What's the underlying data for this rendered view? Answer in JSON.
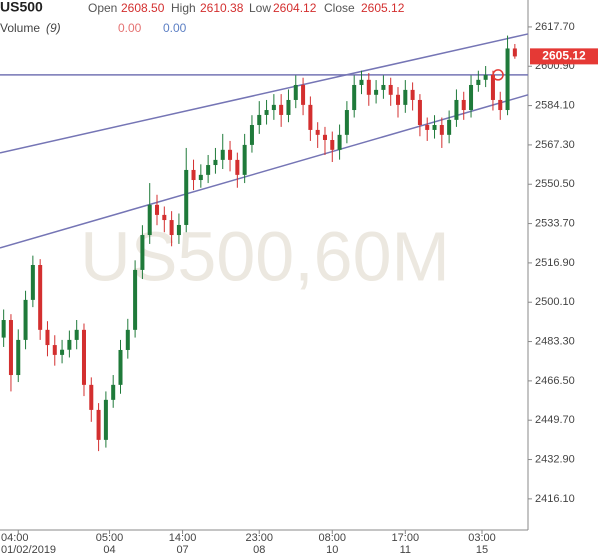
{
  "chart_data": {
    "type": "candlestick",
    "title": "US500",
    "header": {
      "open_label": "Open",
      "open": "2608.50",
      "high_label": "High",
      "high": "2610.38",
      "low_label": "Low",
      "low": "2604.12",
      "close_label": "Close",
      "close": "2605.12",
      "volume_label": "Volume",
      "volume_param": "(9)",
      "volume_value_1": "0.00",
      "volume_value_2": "0.00"
    },
    "watermark": "US500,60M",
    "up_color": "#1f7a3a",
    "down_color": "#d32f2f",
    "drawing_color": "#7575b5",
    "candles": {
      "open": [
        2485.0,
        2492.5,
        2469.0,
        2484.0,
        2501.1,
        2516.0,
        2488.3,
        2481.8,
        2477.6,
        2479.8,
        2484.0,
        2488.3,
        2464.8,
        2454.1,
        2441.3,
        2458.4,
        2464.8,
        2479.7,
        2488.3,
        2513.9,
        2528.8,
        2541.7,
        2537.4,
        2535.2,
        2528.8,
        2533.1,
        2556.6,
        2552.3,
        2554.5,
        2558.7,
        2560.9,
        2565.2,
        2560.9,
        2554.5,
        2567.3,
        2575.8,
        2580.1,
        2582.2,
        2584.4,
        2580.1,
        2586.5,
        2592.9,
        2584.4,
        2573.7,
        2571.6,
        2569.4,
        2565.2,
        2571.6,
        2582.2,
        2592.9,
        2595.1,
        2588.7,
        2590.8,
        2592.9,
        2588.7,
        2584.4,
        2590.8,
        2586.5,
        2575.8,
        2573.7,
        2575.8,
        2571.6,
        2578.0,
        2586.5,
        2582.2,
        2592.9,
        2595.1,
        2597.2,
        2586.5,
        2582.2,
        2608.5
      ],
      "high": [
        2497.0,
        2495.0,
        2488.5,
        2505.0,
        2520.0,
        2518.5,
        2492.0,
        2486.0,
        2484.0,
        2488.0,
        2492.5,
        2491.0,
        2468.0,
        2457.0,
        2462.0,
        2469.0,
        2484.0,
        2493.0,
        2518.0,
        2533.0,
        2551.0,
        2546.0,
        2541.0,
        2539.0,
        2538.0,
        2566.0,
        2561.0,
        2559.0,
        2563.0,
        2566.0,
        2572.0,
        2569.0,
        2564.0,
        2572.0,
        2580.0,
        2586.0,
        2586.5,
        2589.0,
        2589.0,
        2591.0,
        2597.0,
        2596.0,
        2588.0,
        2577.0,
        2575.0,
        2573.0,
        2576.0,
        2586.0,
        2597.0,
        2599.0,
        2598.0,
        2595.0,
        2597.0,
        2596.0,
        2592.0,
        2595.0,
        2594.0,
        2589.0,
        2579.0,
        2580.0,
        2579.0,
        2582.0,
        2591.0,
        2590.0,
        2597.0,
        2599.0,
        2601.0,
        2599.0,
        2590.0,
        2614.0,
        2610.4
      ],
      "low": [
        2481.0,
        2462.0,
        2466.0,
        2480.0,
        2498.0,
        2484.0,
        2477.0,
        2473.0,
        2474.0,
        2476.5,
        2480.0,
        2460.0,
        2449.0,
        2436.5,
        2438.0,
        2455.0,
        2461.0,
        2476.0,
        2485.0,
        2510.0,
        2525.0,
        2533.0,
        2530.0,
        2524.0,
        2525.0,
        2530.0,
        2548.0,
        2549.0,
        2551.0,
        2555.0,
        2557.0,
        2556.0,
        2549.0,
        2551.0,
        2564.0,
        2572.0,
        2576.0,
        2578.0,
        2575.0,
        2577.0,
        2583.0,
        2580.0,
        2569.0,
        2566.0,
        2563.0,
        2560.0,
        2561.0,
        2568.0,
        2579.0,
        2589.0,
        2584.0,
        2585.0,
        2587.0,
        2584.0,
        2579.0,
        2581.0,
        2582.0,
        2571.0,
        2569.0,
        2570.0,
        2566.0,
        2568.0,
        2575.0,
        2578.0,
        2579.0,
        2590.0,
        2592.0,
        2582.0,
        2578.0,
        2580.0,
        2604.1
      ],
      "close": [
        2492.5,
        2469.0,
        2484.0,
        2501.1,
        2516.0,
        2488.3,
        2481.8,
        2477.6,
        2479.8,
        2484.0,
        2488.3,
        2464.8,
        2454.1,
        2441.3,
        2458.4,
        2464.8,
        2479.7,
        2488.3,
        2513.9,
        2528.8,
        2541.7,
        2537.4,
        2535.2,
        2528.8,
        2533.1,
        2556.6,
        2552.3,
        2554.5,
        2558.7,
        2560.9,
        2565.2,
        2560.9,
        2554.5,
        2567.3,
        2575.8,
        2580.1,
        2582.2,
        2584.4,
        2580.1,
        2586.5,
        2592.9,
        2584.4,
        2573.7,
        2571.6,
        2569.4,
        2565.2,
        2571.6,
        2582.2,
        2592.9,
        2595.1,
        2588.7,
        2590.8,
        2592.9,
        2588.7,
        2584.4,
        2590.8,
        2586.5,
        2575.8,
        2573.7,
        2575.8,
        2571.6,
        2578.0,
        2586.5,
        2582.2,
        2592.9,
        2595.1,
        2597.2,
        2586.5,
        2582.2,
        2608.5,
        2605.1
      ]
    },
    "xlim": [
      -0.5,
      71.8
    ],
    "xticks": [
      {
        "value": 2,
        "label": "04:00"
      },
      {
        "value": 14.5,
        "label": "05:00"
      },
      {
        "value": 24.5,
        "label": "14:00"
      },
      {
        "value": 35,
        "label": "23:00"
      },
      {
        "value": 45,
        "label": "08:00"
      },
      {
        "value": 55,
        "label": "17:00"
      },
      {
        "value": 65.5,
        "label": "03:00"
      }
    ],
    "xtick_dates": [
      "01/02/2019",
      "04",
      "07",
      "08",
      "10",
      "11",
      "15"
    ],
    "ylim": [
      2402.8,
      2629.2
    ],
    "yticks": [
      {
        "value": 2617.7,
        "label": "2617.70"
      },
      {
        "value": 2600.9,
        "label": "2600.90"
      },
      {
        "value": 2584.1,
        "label": "2584.10"
      },
      {
        "value": 2567.3,
        "label": "2567.30"
      },
      {
        "value": 2550.5,
        "label": "2550.50"
      },
      {
        "value": 2533.7,
        "label": "2533.70"
      },
      {
        "value": 2516.9,
        "label": "2516.90"
      },
      {
        "value": 2500.1,
        "label": "2500.10"
      },
      {
        "value": 2483.3,
        "label": "2483.30"
      },
      {
        "value": 2466.5,
        "label": "2466.50"
      },
      {
        "value": 2449.7,
        "label": "2449.70"
      },
      {
        "value": 2432.9,
        "label": "2432.90"
      },
      {
        "value": 2416.1,
        "label": "2416.10"
      }
    ],
    "last_price": {
      "value": 2605.12,
      "label": "2605.12"
    },
    "horizontal_line": 2597.2,
    "channel_upper": [
      2563.9,
      2614.7
    ],
    "channel_lower": [
      2523.3,
      2588.7
    ],
    "alert_marker": {
      "x": 67.7,
      "value": 2597.2
    }
  }
}
